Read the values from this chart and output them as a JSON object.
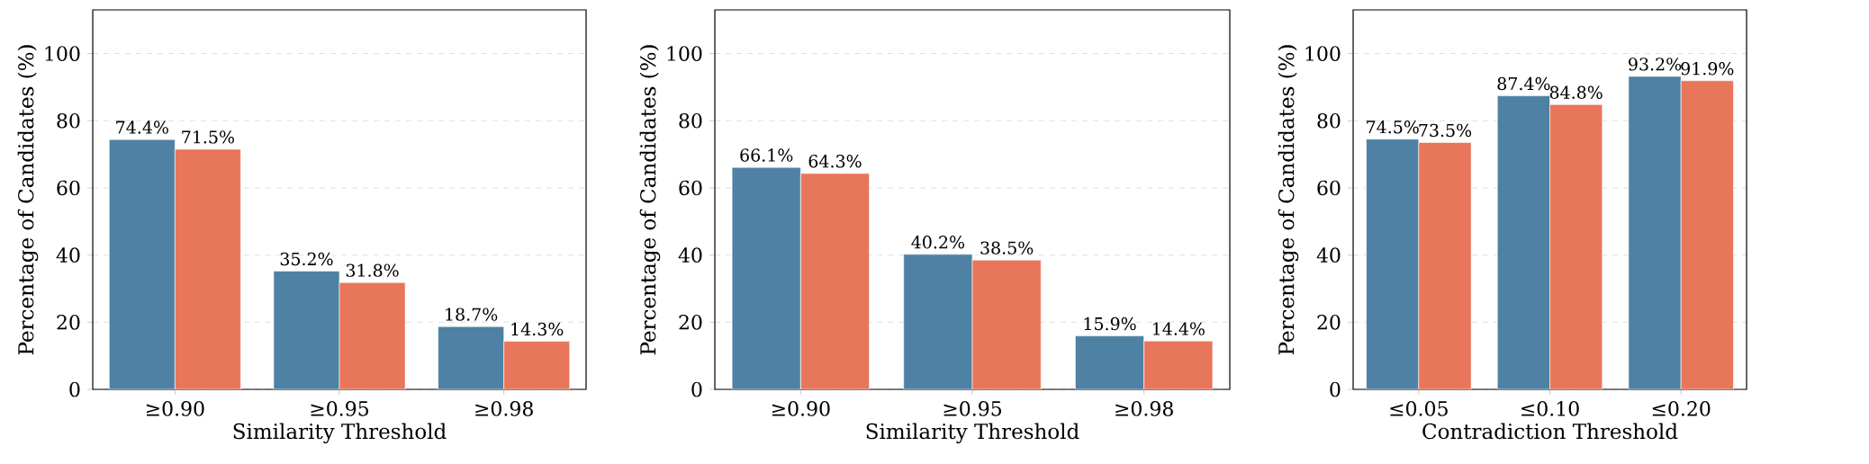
{
  "chart_data": [
    {
      "type": "bar",
      "xlabel": "Similarity Threshold",
      "ylabel": "Percentage of Candidates (%)",
      "categories": [
        "≥0.90",
        "≥0.95",
        "≥0.98"
      ],
      "ylim": [
        0,
        113
      ],
      "yticks": [
        0,
        20,
        40,
        60,
        80,
        100
      ],
      "grid": "y",
      "series": [
        {
          "color": "#4e81a3",
          "values": [
            74.4,
            35.2,
            18.7
          ],
          "value_labels": [
            "74.4%",
            "35.2%",
            "18.7%"
          ]
        },
        {
          "color": "#e8765a",
          "values": [
            71.5,
            31.8,
            14.3
          ],
          "value_labels": [
            "71.5%",
            "31.8%",
            "14.3%"
          ]
        }
      ]
    },
    {
      "type": "bar",
      "xlabel": "Similarity Threshold",
      "ylabel": "Percentage of Candidates (%)",
      "categories": [
        "≥0.90",
        "≥0.95",
        "≥0.98"
      ],
      "ylim": [
        0,
        113
      ],
      "yticks": [
        0,
        20,
        40,
        60,
        80,
        100
      ],
      "grid": "y",
      "series": [
        {
          "color": "#4e81a3",
          "values": [
            66.1,
            40.2,
            15.9
          ],
          "value_labels": [
            "66.1%",
            "40.2%",
            "15.9%"
          ]
        },
        {
          "color": "#e8765a",
          "values": [
            64.3,
            38.5,
            14.4
          ],
          "value_labels": [
            "64.3%",
            "38.5%",
            "14.4%"
          ]
        }
      ]
    },
    {
      "type": "bar",
      "xlabel": "Contradiction Threshold",
      "ylabel": "Percentage of Candidates (%)",
      "categories": [
        "≤0.05",
        "≤0.10",
        "≤0.20"
      ],
      "ylim": [
        0,
        113
      ],
      "yticks": [
        0,
        20,
        40,
        60,
        80,
        100
      ],
      "grid": "y",
      "series": [
        {
          "color": "#4e81a3",
          "values": [
            74.5,
            87.4,
            93.2
          ],
          "value_labels": [
            "74.5%",
            "87.4%",
            "93.2%"
          ]
        },
        {
          "color": "#e8765a",
          "values": [
            73.5,
            84.8,
            91.9
          ],
          "value_labels": [
            "73.5%",
            "84.8%",
            "91.9%"
          ]
        }
      ]
    }
  ]
}
